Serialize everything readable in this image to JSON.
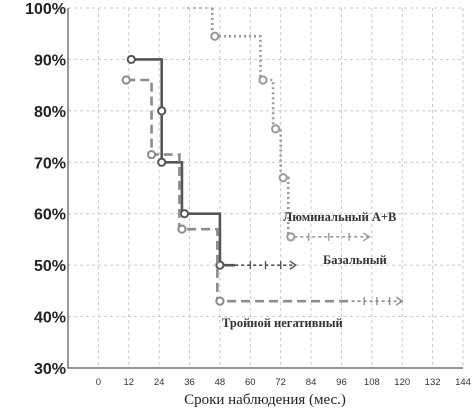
{
  "chart_data": {
    "type": "line",
    "title": "",
    "xlabel": "Сроки наблюдения (мес.)",
    "ylabel": "",
    "xlim": [
      -12,
      144
    ],
    "ylim": [
      30,
      100
    ],
    "x_ticks": [
      0,
      12,
      24,
      36,
      48,
      60,
      72,
      84,
      96,
      108,
      120,
      132,
      144
    ],
    "y_ticks": [
      30,
      40,
      50,
      60,
      70,
      80,
      90,
      100
    ],
    "y_tick_labels": [
      "30%",
      "40%",
      "50%",
      "60%",
      "70%",
      "80%",
      "90%",
      "100%"
    ],
    "grid": true,
    "series": [
      {
        "name": "Люминальный А+В",
        "color": "#9a9a9a",
        "style": "dotted",
        "steps": [
          [
            45,
            100
          ],
          [
            45,
            94.5
          ],
          [
            64,
            94.5
          ],
          [
            64,
            86
          ],
          [
            69,
            86
          ],
          [
            69,
            76.5
          ],
          [
            72,
            76.5
          ],
          [
            72,
            67
          ],
          [
            75,
            67
          ],
          [
            75,
            55.5
          ]
        ],
        "censored_line": [
          [
            35,
            100
          ],
          [
            45,
            100
          ]
        ],
        "censored_tail": [
          [
            75,
            55.5
          ],
          [
            107,
            55.5
          ]
        ],
        "markers": [
          [
            46,
            94.5
          ],
          [
            65,
            86
          ],
          [
            70,
            76.5
          ],
          [
            73,
            67
          ],
          [
            76,
            55.5
          ]
        ]
      },
      {
        "name": "Базальный",
        "color": "#555555",
        "style": "solid",
        "steps": [
          [
            12,
            90
          ],
          [
            25,
            90
          ],
          [
            25,
            70
          ],
          [
            33,
            70
          ],
          [
            33,
            60
          ],
          [
            48,
            60
          ],
          [
            48,
            50
          ],
          [
            54,
            50
          ]
        ],
        "censored_tail": [
          [
            54,
            50
          ],
          [
            78,
            50
          ]
        ],
        "markers": [
          [
            13,
            90
          ],
          [
            25,
            80
          ],
          [
            25,
            70
          ],
          [
            34,
            60
          ],
          [
            48,
            50
          ]
        ]
      },
      {
        "name": "Тройной негативный",
        "color": "#8c8c8c",
        "style": "dashed",
        "steps": [
          [
            11,
            86
          ],
          [
            21,
            86
          ],
          [
            21,
            71.5
          ],
          [
            32,
            71.5
          ],
          [
            32,
            57
          ],
          [
            47,
            57
          ],
          [
            47,
            43
          ],
          [
            100,
            43
          ]
        ],
        "censored_tail": [
          [
            100,
            43
          ],
          [
            120,
            43
          ]
        ],
        "markers": [
          [
            11,
            86
          ],
          [
            21,
            71.5
          ],
          [
            33,
            57
          ],
          [
            48,
            43
          ]
        ]
      }
    ]
  }
}
